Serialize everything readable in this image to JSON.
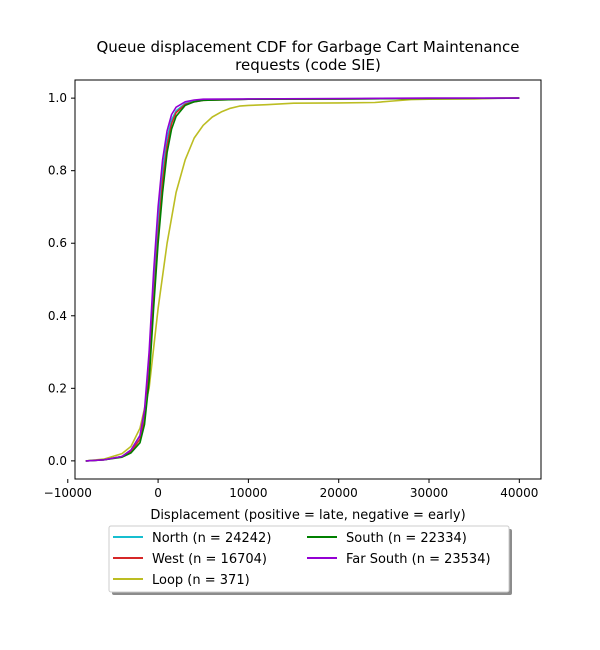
{
  "chart_data": {
    "type": "line",
    "title_line1": "Queue displacement CDF for Garbage Cart Maintenance",
    "title_line2": "requests (code SIE)",
    "xlabel": "Displacement (positive = late, negative = early)",
    "ylabel": "",
    "xlim": [
      -9200,
      42400
    ],
    "ylim": [
      -0.05,
      1.05
    ],
    "xticks": [
      -10000,
      0,
      10000,
      20000,
      30000,
      40000
    ],
    "xtick_labels": [
      "−10000",
      "0",
      "10000",
      "20000",
      "30000",
      "40000"
    ],
    "yticks": [
      0.0,
      0.2,
      0.4,
      0.6,
      0.8,
      1.0
    ],
    "ytick_labels": [
      "0.0",
      "0.2",
      "0.4",
      "0.6",
      "0.8",
      "1.0"
    ],
    "grid": false,
    "legend_placement": "below plot, two columns",
    "series": [
      {
        "name": "North (n = 24242)",
        "color": "#17becf",
        "points": [
          [
            -8000,
            0.0
          ],
          [
            -6000,
            0.003
          ],
          [
            -4000,
            0.012
          ],
          [
            -3000,
            0.03
          ],
          [
            -2000,
            0.07
          ],
          [
            -1500,
            0.13
          ],
          [
            -1000,
            0.28
          ],
          [
            -500,
            0.48
          ],
          [
            0,
            0.66
          ],
          [
            500,
            0.8
          ],
          [
            1000,
            0.89
          ],
          [
            1500,
            0.94
          ],
          [
            2000,
            0.965
          ],
          [
            3000,
            0.985
          ],
          [
            4000,
            0.992
          ],
          [
            5000,
            0.995
          ],
          [
            10000,
            0.997
          ],
          [
            20000,
            0.998
          ],
          [
            30000,
            0.999
          ],
          [
            40000,
            1.0
          ]
        ]
      },
      {
        "name": "West (n = 16704)",
        "color": "#d62728",
        "points": [
          [
            -8000,
            0.0
          ],
          [
            -6000,
            0.003
          ],
          [
            -4000,
            0.012
          ],
          [
            -3000,
            0.025
          ],
          [
            -2000,
            0.06
          ],
          [
            -1500,
            0.11
          ],
          [
            -1000,
            0.24
          ],
          [
            -500,
            0.44
          ],
          [
            0,
            0.62
          ],
          [
            500,
            0.77
          ],
          [
            1000,
            0.87
          ],
          [
            1500,
            0.93
          ],
          [
            2000,
            0.96
          ],
          [
            3000,
            0.983
          ],
          [
            4000,
            0.99
          ],
          [
            5000,
            0.994
          ],
          [
            10000,
            0.997
          ],
          [
            20000,
            0.998
          ],
          [
            30000,
            0.999
          ],
          [
            40000,
            1.0
          ]
        ]
      },
      {
        "name": "Loop (n = 371)",
        "color": "#bcbd22",
        "points": [
          [
            -8000,
            0.0
          ],
          [
            -6000,
            0.005
          ],
          [
            -4000,
            0.02
          ],
          [
            -3000,
            0.04
          ],
          [
            -2000,
            0.09
          ],
          [
            -1000,
            0.2
          ],
          [
            0,
            0.42
          ],
          [
            1000,
            0.6
          ],
          [
            2000,
            0.74
          ],
          [
            3000,
            0.83
          ],
          [
            4000,
            0.89
          ],
          [
            5000,
            0.925
          ],
          [
            6000,
            0.948
          ],
          [
            7000,
            0.962
          ],
          [
            8000,
            0.972
          ],
          [
            9000,
            0.978
          ],
          [
            10000,
            0.98
          ],
          [
            12000,
            0.982
          ],
          [
            15000,
            0.986
          ],
          [
            20000,
            0.987
          ],
          [
            24000,
            0.988
          ],
          [
            26000,
            0.992
          ],
          [
            28000,
            0.996
          ],
          [
            30000,
            0.997
          ],
          [
            35000,
            0.998
          ],
          [
            38000,
            1.0
          ],
          [
            40000,
            1.0
          ]
        ]
      },
      {
        "name": "South (n = 22334)",
        "color": "#008000",
        "points": [
          [
            -8000,
            0.0
          ],
          [
            -6000,
            0.003
          ],
          [
            -4000,
            0.01
          ],
          [
            -3000,
            0.022
          ],
          [
            -2000,
            0.05
          ],
          [
            -1500,
            0.1
          ],
          [
            -1000,
            0.22
          ],
          [
            -500,
            0.42
          ],
          [
            0,
            0.6
          ],
          [
            500,
            0.74
          ],
          [
            1000,
            0.85
          ],
          [
            1500,
            0.915
          ],
          [
            2000,
            0.95
          ],
          [
            3000,
            0.98
          ],
          [
            4000,
            0.99
          ],
          [
            5000,
            0.994
          ],
          [
            10000,
            0.997
          ],
          [
            20000,
            0.998
          ],
          [
            30000,
            0.999
          ],
          [
            40000,
            1.0
          ]
        ]
      },
      {
        "name": "Far South (n = 23534)",
        "color": "#9400d3",
        "points": [
          [
            -8000,
            0.0
          ],
          [
            -6000,
            0.003
          ],
          [
            -4000,
            0.012
          ],
          [
            -3000,
            0.03
          ],
          [
            -2000,
            0.07
          ],
          [
            -1500,
            0.14
          ],
          [
            -1000,
            0.3
          ],
          [
            -500,
            0.52
          ],
          [
            0,
            0.7
          ],
          [
            500,
            0.83
          ],
          [
            1000,
            0.91
          ],
          [
            1500,
            0.955
          ],
          [
            2000,
            0.975
          ],
          [
            3000,
            0.99
          ],
          [
            4000,
            0.995
          ],
          [
            5000,
            0.997
          ],
          [
            10000,
            0.998
          ],
          [
            20000,
            0.999
          ],
          [
            30000,
            1.0
          ],
          [
            40000,
            1.0
          ]
        ]
      }
    ]
  }
}
